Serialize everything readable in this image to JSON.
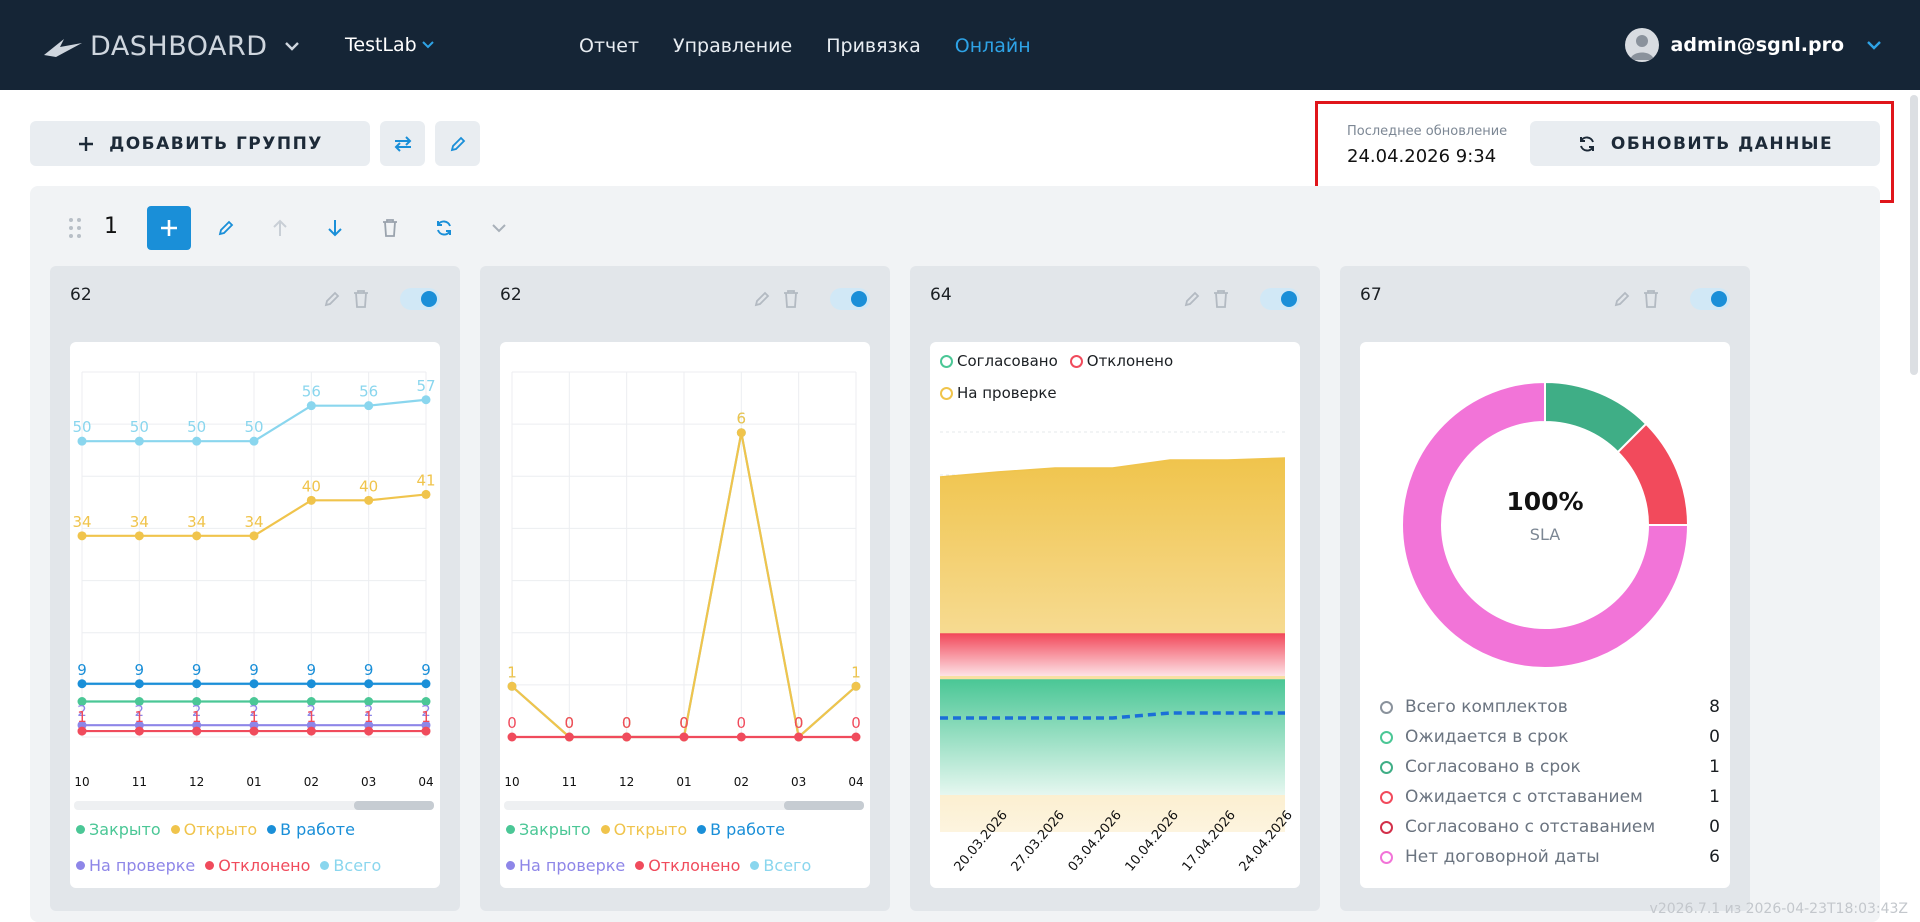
{
  "header": {
    "logo": "DASHBOARD",
    "project": "TestLab",
    "nav": [
      "Отчет",
      "Управление",
      "Привязка",
      "Онлайн"
    ],
    "active_nav": "Онлайн",
    "user": "admin@sgnl.pro"
  },
  "toolbar": {
    "add_group": "ДОБАВИТЬ ГРУППУ",
    "last_update_caption": "Последнее обновление",
    "last_update_value": "24.04.2026 9:34",
    "refresh": "ОБНОВИТЬ ДАННЫЕ"
  },
  "group": {
    "number": "1"
  },
  "cards": [
    {
      "title": "62"
    },
    {
      "title": "62"
    },
    {
      "title": "64"
    },
    {
      "title": "67"
    }
  ],
  "colors": {
    "closed": "#4bc796",
    "open": "#f0c44c",
    "in_work": "#1a8fd8",
    "review": "#8e86e8",
    "rejected": "#f04b5c",
    "total": "#8ad6ee",
    "sla_pink": "#f274d8",
    "sla_red": "#f24a5c",
    "sla_green": "#3fae86"
  },
  "chart_data": [
    {
      "type": "line",
      "categories": [
        "10",
        "11",
        "12",
        "01",
        "02",
        "03",
        "04"
      ],
      "series": [
        {
          "name": "Всего",
          "values": [
            50,
            50,
            50,
            50,
            56,
            56,
            57
          ]
        },
        {
          "name": "Открыто",
          "values": [
            34,
            34,
            34,
            34,
            40,
            40,
            41
          ]
        },
        {
          "name": "В работе",
          "values": [
            9,
            9,
            9,
            9,
            9,
            9,
            9
          ]
        },
        {
          "name": "На проверке",
          "values": [
            2,
            2,
            2,
            2,
            2,
            2,
            2
          ]
        },
        {
          "name": "Отклонено",
          "values": [
            1,
            1,
            1,
            1,
            1,
            1,
            1
          ]
        }
      ],
      "legend": [
        "Закрыто",
        "Открыто",
        "В работе",
        "На проверке",
        "Отклонено",
        "Всего"
      ]
    },
    {
      "type": "line",
      "categories": [
        "10",
        "11",
        "12",
        "01",
        "02",
        "03",
        "04"
      ],
      "series": [
        {
          "name": "Всего",
          "values": [
            1,
            0,
            0,
            0,
            6,
            0,
            1
          ]
        },
        {
          "name": "Открыто",
          "values": [
            1,
            0,
            0,
            0,
            6,
            0,
            1
          ]
        },
        {
          "name": "Отклонено",
          "values": [
            0,
            0,
            0,
            0,
            0,
            0,
            0
          ]
        }
      ],
      "legend": [
        "Закрыто",
        "Открыто",
        "В работе",
        "На проверке",
        "Отклонено",
        "Всего"
      ]
    },
    {
      "type": "area",
      "x": [
        "20.03.2026",
        "27.03.2026",
        "03.04.2026",
        "10.04.2026",
        "17.04.2026",
        "24.04.2026"
      ],
      "legend": [
        "Согласовано",
        "Отклонено",
        "На проверке"
      ]
    },
    {
      "type": "pie",
      "center_value": "100%",
      "center_label": "SLA",
      "slices": [
        {
          "name": "Согласовано в срок",
          "value": 1
        },
        {
          "name": "Ожидается с отставанием",
          "value": 1
        },
        {
          "name": "Нет договорной даты",
          "value": 6
        }
      ],
      "list": [
        {
          "label": "Всего комплектов",
          "value": "8"
        },
        {
          "label": "Ожидается в срок",
          "value": "0"
        },
        {
          "label": "Согласовано в срок",
          "value": "1"
        },
        {
          "label": "Ожидается с отставанием",
          "value": "1"
        },
        {
          "label": "Согласовано с отставанием",
          "value": "0"
        },
        {
          "label": "Нет договорной даты",
          "value": "6"
        }
      ]
    }
  ],
  "version": "v2026.7.1 из 2026-04-23T18:03:43Z"
}
